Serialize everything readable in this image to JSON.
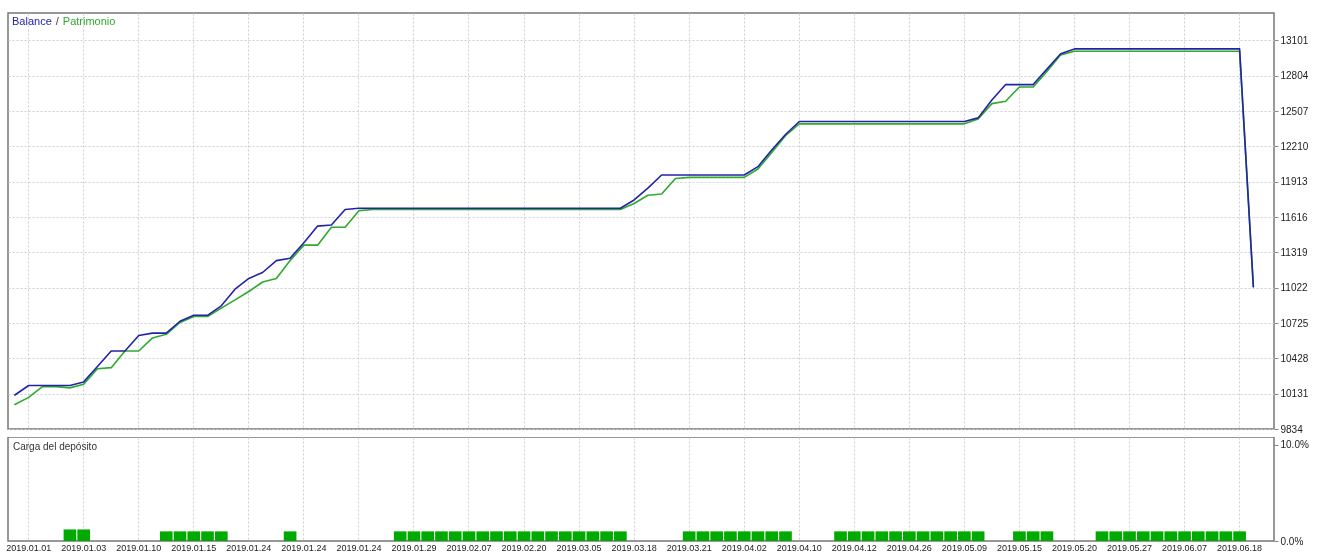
{
  "chart_data": [
    {
      "type": "line",
      "legend": "top left",
      "grid": true,
      "tick_labels": "y",
      "annotations": [
        "/"
      ],
      "categories": [
        null,
        "2019.01.01",
        null,
        null,
        null,
        "2019.01.03",
        null,
        null,
        null,
        "2019.01.10",
        null,
        null,
        null,
        "2019.01.15",
        null,
        null,
        null,
        "2019.01.24",
        null,
        null,
        null,
        "2019.01.24",
        null,
        null,
        null,
        "2019.01.24",
        null,
        null,
        null,
        "2019.01.29",
        null,
        null,
        null,
        "2019.02.07",
        null,
        null,
        null,
        "2019.02.20",
        null,
        null,
        null,
        "2019.03.05",
        null,
        null,
        null,
        "2019.03.18",
        null,
        null,
        null,
        "2019.03.21",
        null,
        null,
        null,
        "2019.04.02",
        null,
        null,
        null,
        "2019.04.10",
        null,
        null,
        null,
        "2019.04.12",
        null,
        null,
        null,
        "2019.04.26",
        null,
        null,
        null,
        "2019.05.09",
        null,
        null,
        null,
        "2019.05.15",
        null,
        null,
        null,
        "2019.05.20",
        null,
        null,
        null,
        "2019.05.27",
        null,
        null,
        null,
        "2019.06.07",
        null,
        null,
        null,
        "2019.06.18",
        null,
        null
      ],
      "ylim": [
        9834,
        13332
      ],
      "yticks": [
        9834,
        10131,
        10428,
        10725,
        11022,
        11319,
        11616,
        11913,
        12210,
        12507,
        12804,
        13101
      ],
      "series": [
        {
          "name": "Balance",
          "color": "#2323a8",
          "values": [
            10120,
            10200,
            10200,
            10200,
            10200,
            10230,
            10360,
            10490,
            10490,
            10620,
            10640,
            10640,
            10740,
            10790,
            10790,
            10870,
            11010,
            11100,
            11150,
            11250,
            11270,
            11400,
            11540,
            11550,
            11680,
            11690,
            11690,
            11690,
            11690,
            11690,
            11690,
            11690,
            11690,
            11690,
            11690,
            11690,
            11690,
            11690,
            11690,
            11690,
            11690,
            11690,
            11690,
            11690,
            11690,
            11760,
            11860,
            11970,
            11970,
            11970,
            11970,
            11970,
            11970,
            11970,
            12040,
            12180,
            12310,
            12420,
            12420,
            12420,
            12420,
            12420,
            12420,
            12420,
            12420,
            12420,
            12420,
            12420,
            12420,
            12420,
            12450,
            12600,
            12730,
            12730,
            12730,
            12860,
            12990,
            13030,
            13030,
            13030,
            13030,
            13030,
            13030,
            13030,
            13030,
            13030,
            13030,
            13030,
            13030,
            13030,
            11030,
            null
          ]
        },
        {
          "name": "Patrimonio",
          "color": "#2eaa2e",
          "values": [
            10040,
            10100,
            10190,
            10190,
            10180,
            10210,
            10340,
            10350,
            10490,
            10490,
            10600,
            10630,
            10730,
            10780,
            10780,
            10850,
            10920,
            10990,
            11070,
            11100,
            11250,
            11380,
            11380,
            11530,
            11530,
            11670,
            11680,
            11680,
            11680,
            11680,
            11680,
            11680,
            11680,
            11680,
            11680,
            11680,
            11680,
            11680,
            11680,
            11680,
            11680,
            11680,
            11680,
            11680,
            11680,
            11730,
            11800,
            11810,
            11940,
            11950,
            11950,
            11950,
            11950,
            11950,
            12020,
            12160,
            12300,
            12400,
            12400,
            12400,
            12400,
            12400,
            12400,
            12400,
            12400,
            12400,
            12400,
            12400,
            12400,
            12400,
            12440,
            12570,
            12590,
            12710,
            12710,
            12840,
            12980,
            13010,
            13010,
            13010,
            13010,
            13010,
            13010,
            13010,
            13010,
            13010,
            13010,
            13010,
            13010,
            13010,
            11030,
            null
          ]
        }
      ]
    },
    {
      "type": "bar",
      "title": "Carga del depósito",
      "grid": "x",
      "color": "#00aa00",
      "categories": [
        null,
        "2019.01.01",
        null,
        null,
        null,
        "2019.01.03",
        null,
        null,
        null,
        "2019.01.10",
        null,
        null,
        null,
        "2019.01.15",
        null,
        null,
        null,
        "2019.01.24",
        null,
        null,
        null,
        "2019.01.24",
        null,
        null,
        null,
        "2019.01.24",
        null,
        null,
        null,
        "2019.01.29",
        null,
        null,
        null,
        "2019.02.07",
        null,
        null,
        null,
        "2019.02.20",
        null,
        null,
        null,
        "2019.03.05",
        null,
        null,
        null,
        "2019.03.18",
        null,
        null,
        null,
        "2019.03.21",
        null,
        null,
        null,
        "2019.04.02",
        null,
        null,
        null,
        "2019.04.10",
        null,
        null,
        null,
        "2019.04.12",
        null,
        null,
        null,
        "2019.04.26",
        null,
        null,
        null,
        "2019.05.09",
        null,
        null,
        null,
        "2019.05.15",
        null,
        null,
        null,
        "2019.05.20",
        null,
        null,
        null,
        "2019.05.27",
        null,
        null,
        null,
        "2019.06.07",
        null,
        null,
        null,
        "2019.06.18",
        null,
        null
      ],
      "ylim": [
        0,
        10.8
      ],
      "yticks": [
        {
          "value": 0,
          "label": "0.0%"
        },
        {
          "value": 10,
          "label": "10.0%"
        }
      ],
      "values": [
        null,
        null,
        null,
        null,
        1.2,
        1.2,
        null,
        null,
        null,
        null,
        null,
        1.0,
        1.0,
        1.0,
        1.0,
        1.0,
        null,
        null,
        null,
        null,
        1.0,
        null,
        null,
        null,
        null,
        null,
        null,
        null,
        1.0,
        1.0,
        1.0,
        1.0,
        1.0,
        1.0,
        1.0,
        1.0,
        1.0,
        1.0,
        1.0,
        1.0,
        1.0,
        1.0,
        1.0,
        1.0,
        1.0,
        null,
        null,
        null,
        null,
        1.0,
        1.0,
        1.0,
        1.0,
        1.0,
        1.0,
        1.0,
        1.0,
        null,
        null,
        null,
        1.0,
        1.0,
        1.0,
        1.0,
        1.0,
        1.0,
        1.0,
        1.0,
        1.0,
        1.0,
        1.0,
        null,
        null,
        1.0,
        1.0,
        1.0,
        null,
        null,
        null,
        1.0,
        1.0,
        1.0,
        1.0,
        1.0,
        1.0,
        1.0,
        1.0,
        1.0,
        1.0,
        1.0,
        null,
        null
      ]
    }
  ]
}
